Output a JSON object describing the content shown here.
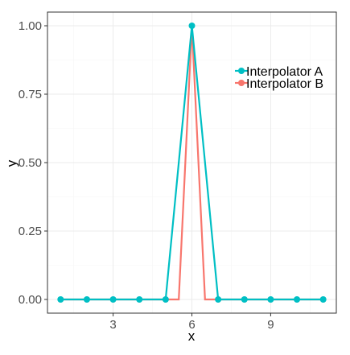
{
  "chart_data": {
    "type": "line",
    "title": "",
    "xlabel": "x",
    "ylabel": "y",
    "xlim": [
      0.5,
      11.5
    ],
    "ylim": [
      -0.05,
      1.05
    ],
    "x_ticks": [
      3,
      6,
      9
    ],
    "x_tick_labels": [
      "3",
      "6",
      "9"
    ],
    "y_ticks": [
      0,
      0.25,
      0.5,
      0.75,
      1.0
    ],
    "y_tick_labels": [
      "0.00",
      "0.25",
      "0.50",
      "0.75",
      "1.00"
    ],
    "grid": true,
    "legend_position": "top-right",
    "points": {
      "x": [
        1,
        2,
        3,
        4,
        5,
        6,
        7,
        8,
        9,
        10,
        11
      ],
      "y": [
        0,
        0,
        0,
        0,
        0,
        1,
        0,
        0,
        0,
        0,
        0
      ],
      "color": "#00bfc4"
    },
    "series": [
      {
        "name": "Interpolator A",
        "color": "#00bfc4",
        "marker": "circle",
        "x": [
          1,
          5,
          6,
          7,
          11
        ],
        "y": [
          0,
          0,
          1,
          0,
          0
        ]
      },
      {
        "name": "Interpolator B",
        "color": "#f8766d",
        "marker": "circle",
        "x": [
          1,
          5.5,
          6,
          6.5,
          11
        ],
        "y": [
          0,
          0,
          1,
          0,
          0
        ]
      }
    ]
  }
}
